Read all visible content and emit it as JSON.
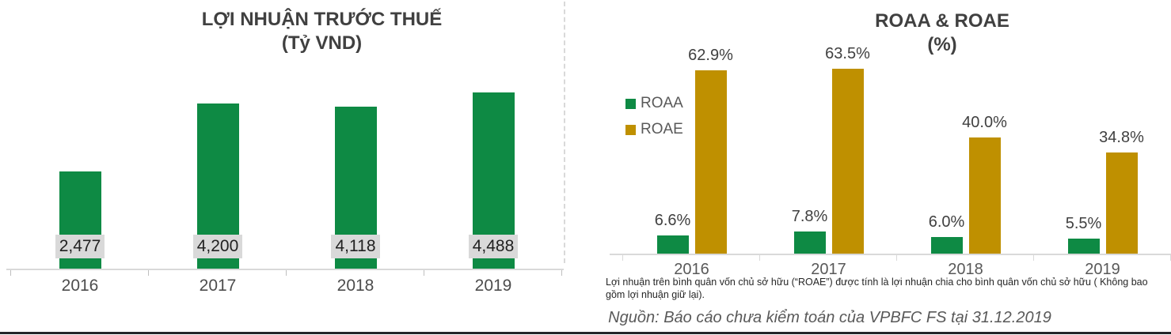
{
  "page": {
    "background": "#FFFFFF"
  },
  "left_chart": {
    "title_line1": "LỢI NHUẬN TRƯỚC THUẾ",
    "title_line2": "(Tỷ VND)"
  },
  "right_chart": {
    "title_line1": "ROAA & ROAE",
    "title_line2": "(%)",
    "legend": [
      {
        "label": "ROAA",
        "color": "#0E8A44"
      },
      {
        "label": "ROAE",
        "color": "#BF9000"
      }
    ]
  },
  "footnote": "Lợi nhuận trên bình quân vốn chủ sở hữu (“ROAE”) được tính là lợi nhuận chia cho bình quân vốn chủ sở hữu ( Không bao gồm lợi nhuận giữ lại).",
  "source": "Nguồn: Báo cáo chưa kiểm toán của VPBFC FS tại 31.12.2019",
  "colors": {
    "bar_green": "#0E8A44",
    "bar_gold": "#BF9000",
    "title_text": "#404040",
    "axis_label_text": "#595959",
    "value_box_bg": "#D9D9D9",
    "axis_line": "#D9D9D9",
    "footer_line": "#23262A"
  },
  "chart_data": [
    {
      "type": "bar",
      "title": "LỢI NHUẬN TRƯỚC THUẾ (Tỷ VND)",
      "categories": [
        "2016",
        "2017",
        "2018",
        "2019"
      ],
      "series": [
        {
          "name": "loi-nhuan-truoc-thue",
          "color": "#0E8A44",
          "values": [
            2477,
            4200,
            4118,
            4488
          ]
        }
      ],
      "value_labels": [
        "2,477",
        "4,200",
        "4,118",
        "4,488"
      ],
      "xlabel": "",
      "ylabel": "Tỷ VND",
      "ylim": [
        0,
        4800
      ],
      "grid": false,
      "legend_position": "none"
    },
    {
      "type": "bar",
      "title": "ROAA & ROAE (%)",
      "categories": [
        "2016",
        "2017",
        "2018",
        "2019"
      ],
      "series": [
        {
          "name": "ROAA",
          "color": "#0E8A44",
          "values": [
            6.6,
            7.8,
            6.0,
            5.5
          ],
          "labels": [
            "6.6%",
            "7.8%",
            "6.0%",
            "5.5%"
          ]
        },
        {
          "name": "ROAE",
          "color": "#BF9000",
          "values": [
            62.9,
            63.5,
            40.0,
            34.8
          ],
          "labels": [
            "62.9%",
            "63.5%",
            "40.0%",
            "34.8%"
          ]
        }
      ],
      "xlabel": "",
      "ylabel": "%",
      "ylim": [
        0,
        68
      ],
      "grid": false,
      "legend_position": "upper-left-inside"
    }
  ]
}
